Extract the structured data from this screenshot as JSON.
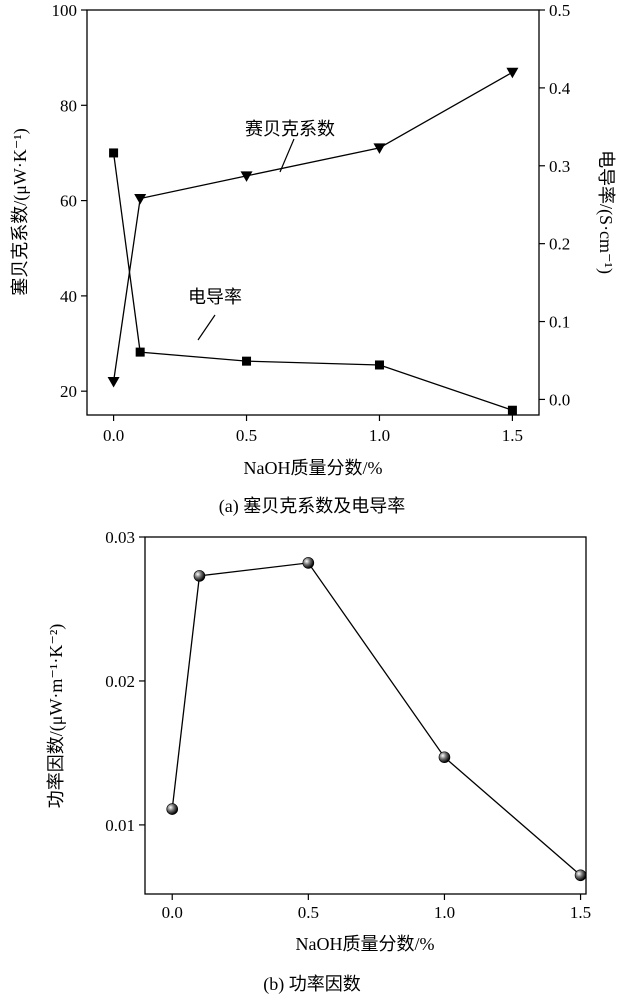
{
  "chart_data": [
    {
      "type": "line",
      "caption": "(a)  塞贝克系数及电导率",
      "xlabel": "NaOH质量分数/%",
      "ylabel": "塞贝克系数/(μW·K⁻¹)",
      "y2label": "电导率/(S·cm⁻¹)",
      "xlim": [
        -0.1,
        1.6
      ],
      "ylim": [
        15,
        100
      ],
      "y2lim": [
        -0.02,
        0.5
      ],
      "x_ticks": [
        "0.0",
        "0.5",
        "1.0",
        "1.5"
      ],
      "y_ticks": [
        "20",
        "40",
        "60",
        "80",
        "100"
      ],
      "y2_ticks": [
        "0.0",
        "0.1",
        "0.2",
        "0.3",
        "0.4",
        "0.5"
      ],
      "series": [
        {
          "name": "赛贝克系数",
          "axis": "right",
          "marker": "triangle-down",
          "x": [
            0.0,
            0.1,
            0.5,
            1.0,
            1.5
          ],
          "y": [
            0.023,
            0.258,
            0.287,
            0.323,
            0.42
          ]
        },
        {
          "name": "电导率",
          "axis": "left",
          "marker": "square",
          "x": [
            0.0,
            0.1,
            0.5,
            1.0,
            1.5
          ],
          "y": [
            70,
            28.2,
            26.3,
            25.5,
            16
          ]
        }
      ]
    },
    {
      "type": "line",
      "caption": "(b)  功率因数",
      "xlabel": "NaOH质量分数/%",
      "ylabel": "功率因数/(μW·m⁻¹·K⁻²)",
      "xlim": [
        -0.1,
        1.52
      ],
      "ylim": [
        0.0052,
        0.03
      ],
      "x_ticks": [
        "0.0",
        "0.5",
        "1.0",
        "1.5"
      ],
      "y_ticks": [
        "0.01",
        "0.02",
        "0.03"
      ],
      "series": [
        {
          "marker": "sphere",
          "x": [
            0.0,
            0.1,
            0.5,
            1.0,
            1.5
          ],
          "y": [
            0.0111,
            0.0273,
            0.0282,
            0.0147,
            0.0065
          ]
        }
      ]
    }
  ]
}
